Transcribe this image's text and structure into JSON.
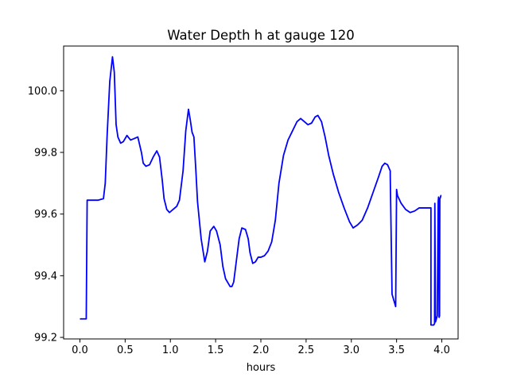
{
  "chart_data": {
    "type": "line",
    "title": "Water Depth h at gauge 120",
    "xlabel": "hours",
    "ylabel": "",
    "xlim": [
      -0.18,
      4.18
    ],
    "ylim": [
      99.195,
      100.145
    ],
    "xticks": [
      0.0,
      0.5,
      1.0,
      1.5,
      2.0,
      2.5,
      3.0,
      3.5,
      4.0
    ],
    "xtick_labels": [
      "0.0",
      "0.5",
      "1.0",
      "1.5",
      "2.0",
      "2.5",
      "3.0",
      "3.5",
      "4.0"
    ],
    "yticks": [
      99.2,
      99.4,
      99.6,
      99.8,
      100.0
    ],
    "ytick_labels": [
      "99.2",
      "99.4",
      "99.6",
      "99.8",
      "100.0"
    ],
    "grid": false,
    "legend": "none",
    "series": [
      {
        "color": "#0000ff",
        "x": [
          0.0,
          0.07,
          0.07,
          0.08,
          0.2,
          0.26,
          0.28,
          0.3,
          0.33,
          0.36,
          0.38,
          0.4,
          0.42,
          0.45,
          0.48,
          0.52,
          0.56,
          0.6,
          0.64,
          0.68,
          0.7,
          0.73,
          0.77,
          0.81,
          0.85,
          0.88,
          0.91,
          0.93,
          0.96,
          0.99,
          1.03,
          1.07,
          1.1,
          1.14,
          1.17,
          1.2,
          1.22,
          1.24,
          1.26,
          1.28,
          1.3,
          1.34,
          1.38,
          1.41,
          1.44,
          1.48,
          1.51,
          1.55,
          1.58,
          1.61,
          1.64,
          1.66,
          1.68,
          1.7,
          1.73,
          1.76,
          1.79,
          1.83,
          1.86,
          1.88,
          1.91,
          1.94,
          1.97,
          2.0,
          2.04,
          2.08,
          2.12,
          2.16,
          2.2,
          2.25,
          2.3,
          2.35,
          2.4,
          2.44,
          2.48,
          2.52,
          2.56,
          2.6,
          2.63,
          2.67,
          2.71,
          2.75,
          2.8,
          2.86,
          2.92,
          2.98,
          3.02,
          3.07,
          3.12,
          3.18,
          3.24,
          3.3,
          3.34,
          3.37,
          3.4,
          3.43,
          3.43,
          3.45,
          3.47,
          3.49,
          3.5,
          3.51,
          3.55,
          3.6,
          3.65,
          3.7,
          3.75,
          3.8,
          3.85,
          3.88,
          3.88,
          3.89,
          3.91,
          3.92,
          3.923,
          3.93,
          3.94,
          3.95,
          3.96,
          3.964,
          3.97,
          3.975,
          3.978,
          3.98,
          3.99,
          3.995
        ],
        "y": [
          99.26,
          99.26,
          99.26,
          99.645,
          99.645,
          99.65,
          99.7,
          99.85,
          100.03,
          100.11,
          100.06,
          99.89,
          99.85,
          99.83,
          99.835,
          99.855,
          99.84,
          99.845,
          99.85,
          99.8,
          99.765,
          99.755,
          99.76,
          99.785,
          99.805,
          99.785,
          99.71,
          99.65,
          99.615,
          99.605,
          99.615,
          99.625,
          99.645,
          99.74,
          99.87,
          99.94,
          99.905,
          99.865,
          99.85,
          99.75,
          99.64,
          99.52,
          99.445,
          99.48,
          99.545,
          99.56,
          99.545,
          99.5,
          99.43,
          99.39,
          99.375,
          99.365,
          99.365,
          99.38,
          99.45,
          99.52,
          99.555,
          99.55,
          99.52,
          99.475,
          99.44,
          99.445,
          99.46,
          99.46,
          99.465,
          99.48,
          99.51,
          99.58,
          99.7,
          99.79,
          99.84,
          99.87,
          99.9,
          99.91,
          99.9,
          99.89,
          99.895,
          99.915,
          99.92,
          99.9,
          99.85,
          99.79,
          99.73,
          99.67,
          99.62,
          99.575,
          99.555,
          99.565,
          99.58,
          99.62,
          99.67,
          99.72,
          99.755,
          99.765,
          99.76,
          99.74,
          99.725,
          99.34,
          99.32,
          99.3,
          99.68,
          99.66,
          99.635,
          99.615,
          99.605,
          99.61,
          99.62,
          99.62,
          99.62,
          99.62,
          99.24,
          99.24,
          99.24,
          99.245,
          99.635,
          99.25,
          99.26,
          99.27,
          99.64,
          99.655,
          99.265,
          99.27,
          99.65,
          99.65,
          99.66,
          99.66
        ]
      }
    ]
  }
}
